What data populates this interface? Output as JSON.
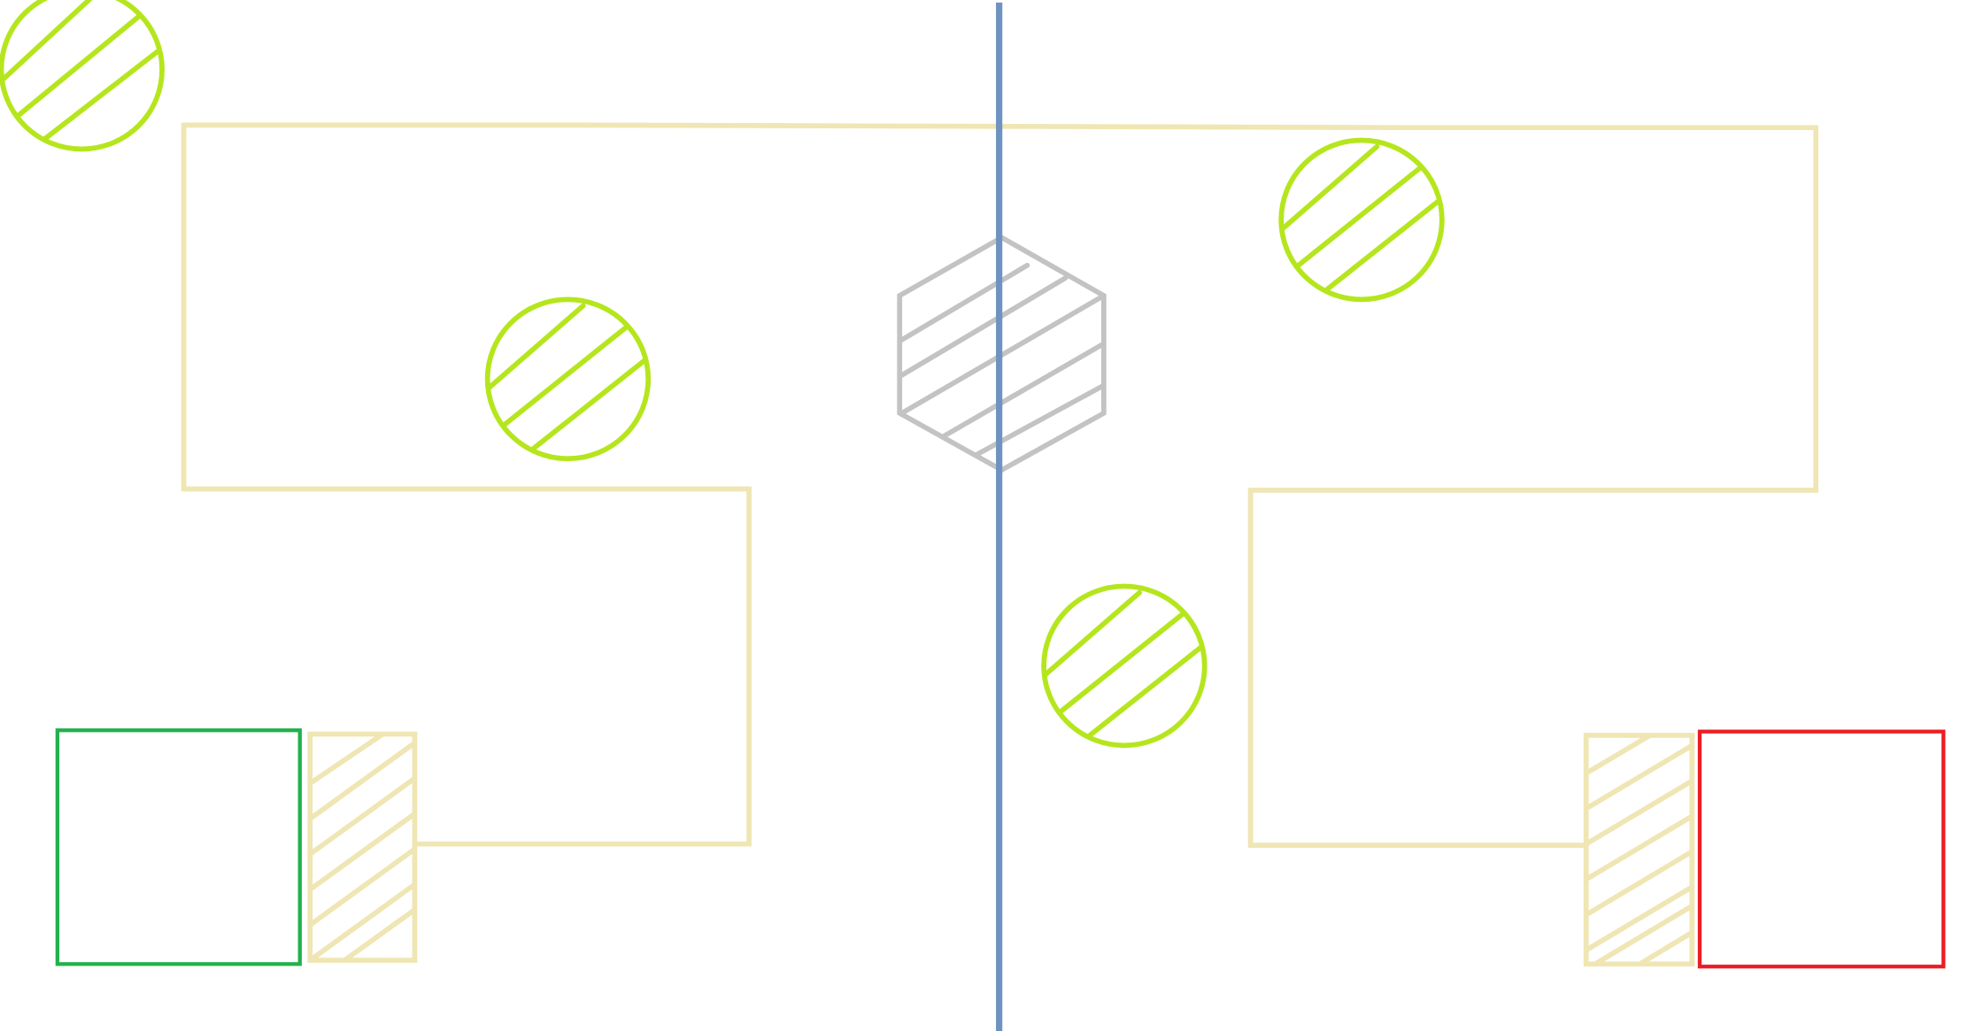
{
  "diagram": {
    "background": "#ffffff",
    "colors": {
      "track": "#efe6b4",
      "ball": "#b5e61d",
      "center_obstacle": "#c3c3c3",
      "center_line": "#6f93c0",
      "left_goal": "#22b14c",
      "right_goal": "#ed1c24"
    },
    "elements": {
      "left_goal": "goal-box",
      "right_goal": "goal-box",
      "balls": 5,
      "center_obstacle": "hexagon",
      "divider": "vertical-line"
    }
  }
}
